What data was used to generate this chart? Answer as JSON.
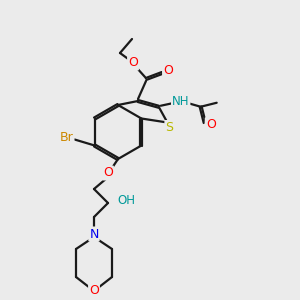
{
  "bg_color": "#ebebeb",
  "line_color": "#1a1a1a",
  "bond_lw": 1.6,
  "atom_colors": {
    "S": "#b8b800",
    "N": "#0000ee",
    "O": "#ff0000",
    "Br": "#cc8800",
    "H_label": "#009999",
    "C": "#1a1a1a"
  }
}
